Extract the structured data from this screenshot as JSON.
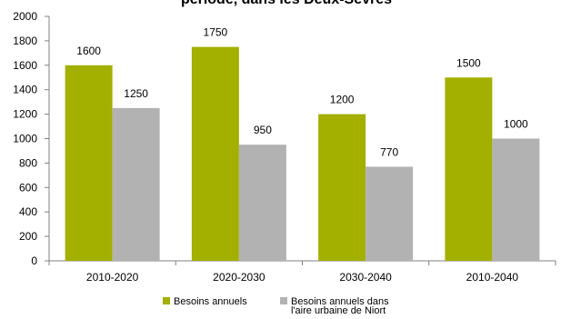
{
  "chart_data": {
    "type": "bar",
    "title": "période, dans les Deux-Sèvres",
    "xlabel": "",
    "ylabel": "",
    "ylim": [
      0,
      2000
    ],
    "yticks": [
      0,
      200,
      400,
      600,
      800,
      1000,
      1200,
      1400,
      1600,
      1800,
      2000
    ],
    "grid": false,
    "legend_position": "bottom",
    "categories": [
      "2010-2020",
      "2020-2030",
      "2030-2040",
      "2010-2040"
    ],
    "series": [
      {
        "name": "Besoins annuels",
        "color": "#a3b000",
        "values": [
          1600,
          1750,
          1200,
          1500
        ],
        "data_labels": [
          "1600",
          "1750",
          "1200",
          "1500"
        ]
      },
      {
        "name": "Besoins annuels dans l'aire urbaine de Niort",
        "legend_lines": [
          "Besoins annuels dans",
          "l'aire urbaine de Niort"
        ],
        "color": "#b2b2b2",
        "values": [
          1250,
          950,
          770,
          1000
        ],
        "data_labels": [
          "1250",
          "950",
          "770",
          "1000"
        ]
      }
    ]
  }
}
